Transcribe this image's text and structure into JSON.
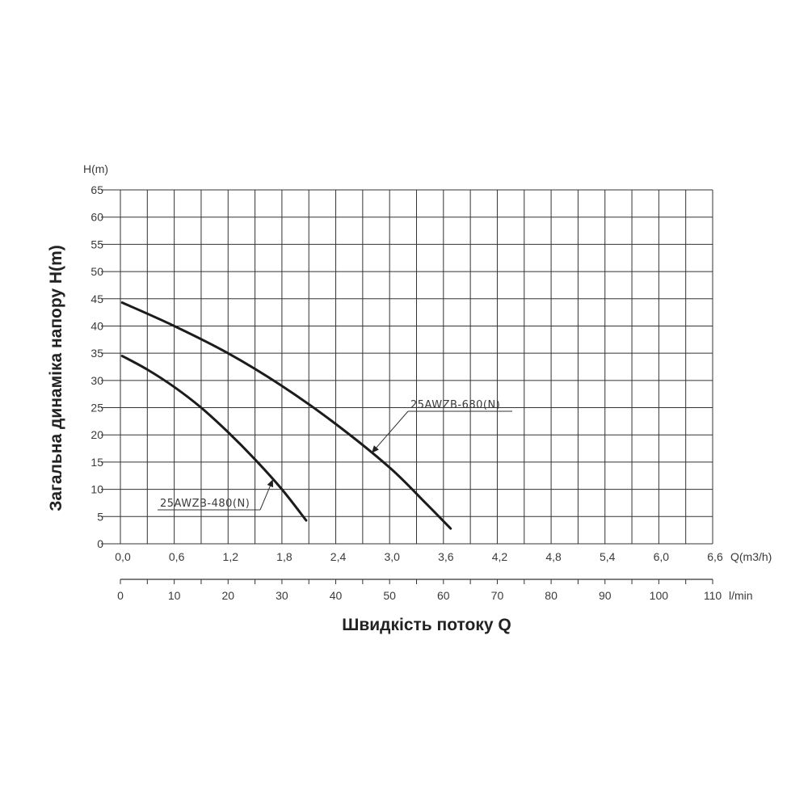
{
  "chart_data": {
    "type": "line",
    "y_unit": "H(m)",
    "y_ticks": [
      "65",
      "60",
      "55",
      "50",
      "45",
      "40",
      "35",
      "30",
      "25",
      "20",
      "15",
      "10",
      "5",
      "0"
    ],
    "ylim": [
      0,
      65
    ],
    "x_unit": "Q(m3/h)",
    "x_ticks": [
      "0,0",
      "0,6",
      "1,2",
      "1,8",
      "2,4",
      "3,0",
      "3,6",
      "4,2",
      "4,8",
      "5,4",
      "6,0",
      "6,6"
    ],
    "xlim": [
      0,
      6.6
    ],
    "x2_unit": "l/min",
    "x2_ticks": [
      "0",
      "10",
      "20",
      "30",
      "40",
      "50",
      "60",
      "70",
      "80",
      "90",
      "100",
      "110"
    ],
    "x2lim": [
      0,
      110
    ],
    "ylabel": "Загальна динаміка напору H(m)",
    "xlabel": "Швидкість потоку Q",
    "grid": true,
    "series": [
      {
        "name": "25AWZB-480(N)",
        "x": [
          0.02,
          0.3,
          0.6,
          0.9,
          1.2,
          1.5,
          1.8,
          2.07
        ],
        "y": [
          34.5,
          32.0,
          28.8,
          25.0,
          20.5,
          15.5,
          10.0,
          4.3
        ]
      },
      {
        "name": "25AWZB-680(N)",
        "x": [
          0.02,
          0.6,
          1.2,
          1.8,
          2.4,
          3.0,
          3.4,
          3.68
        ],
        "y": [
          44.3,
          40.0,
          35.0,
          29.0,
          22.0,
          14.0,
          7.5,
          2.8
        ]
      }
    ]
  }
}
